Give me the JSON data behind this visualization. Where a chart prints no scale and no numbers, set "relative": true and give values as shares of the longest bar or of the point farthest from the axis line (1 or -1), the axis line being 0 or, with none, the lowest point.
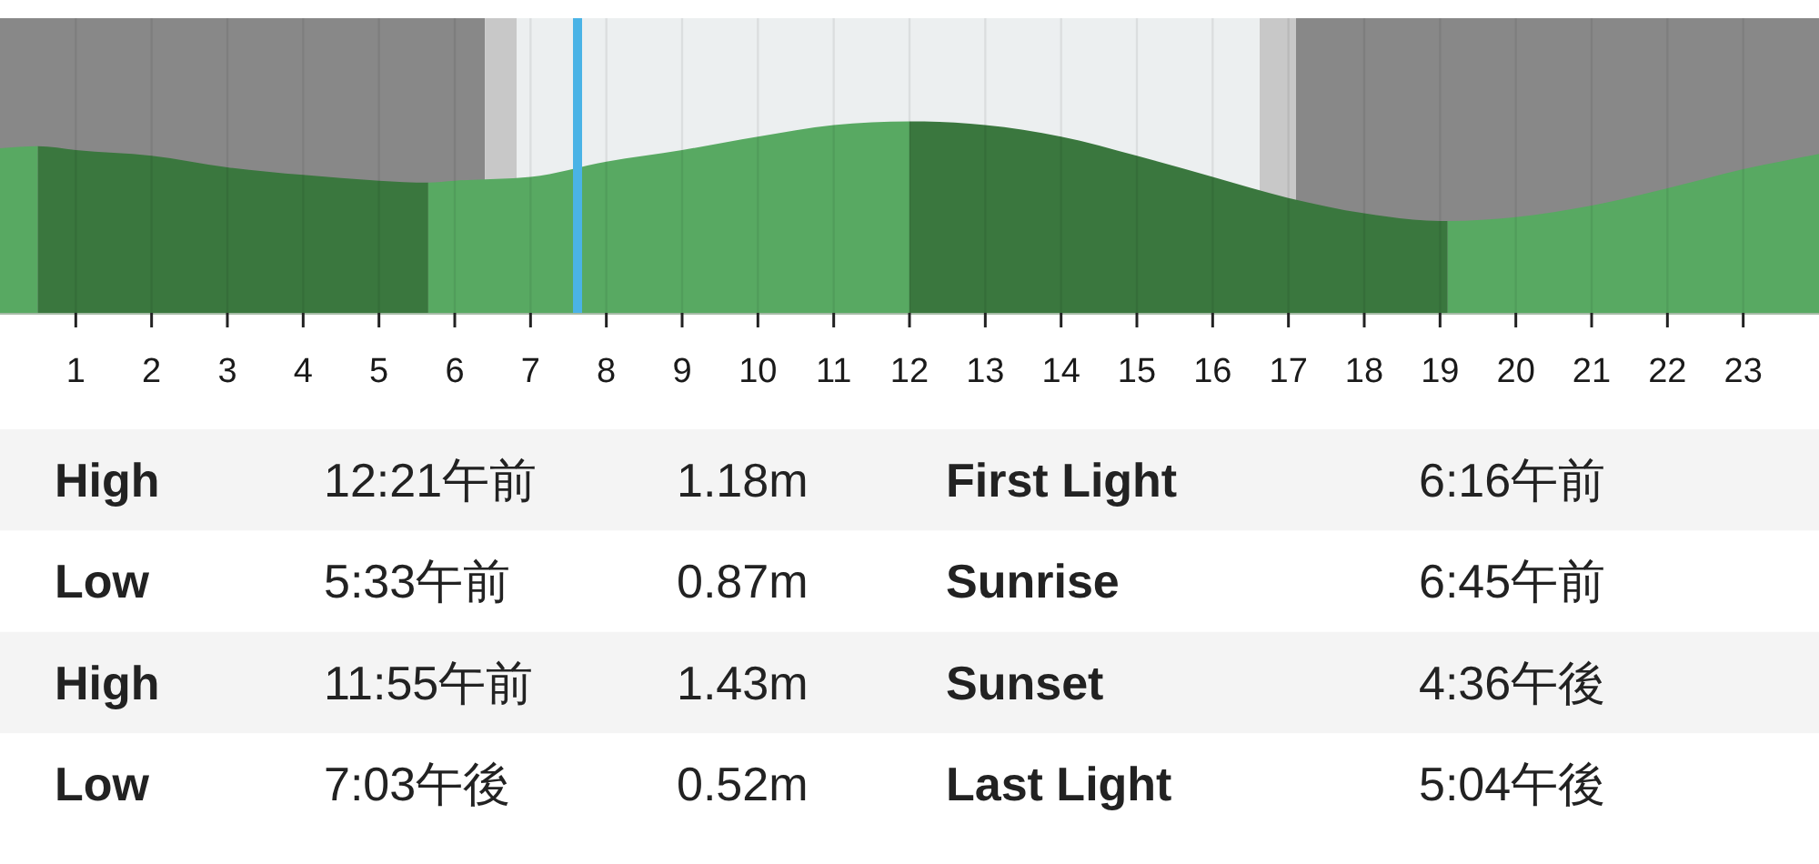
{
  "chart_data": [
    {
      "type": "area",
      "relative": true,
      "xlim": [
        0,
        24
      ],
      "xticks": [
        1,
        2,
        3,
        4,
        5,
        6,
        7,
        8,
        9,
        10,
        11,
        12,
        13,
        14,
        15,
        16,
        17,
        18,
        19,
        20,
        21,
        22,
        23
      ],
      "grid": "x",
      "tick_labels": "x",
      "series": [
        {
          "color": "#58a962",
          "x": [
            0,
            0.5
          ],
          "values": [
            0.86,
            0.87
          ]
        },
        {
          "color": "#3a773e",
          "x": [
            0.5,
            1,
            2,
            3,
            4,
            5,
            5.65
          ],
          "values": [
            0.87,
            0.85,
            0.82,
            0.76,
            0.72,
            0.69,
            0.68
          ]
        },
        {
          "color": "#58a962",
          "x": [
            5.65,
            6,
            7,
            8,
            9,
            10,
            11,
            12
          ],
          "values": [
            0.68,
            0.69,
            0.71,
            0.79,
            0.85,
            0.92,
            0.98,
            1
          ]
        },
        {
          "color": "#3a773e",
          "x": [
            12,
            13,
            14,
            15,
            16,
            17,
            18,
            19,
            19.1
          ],
          "values": [
            1,
            0.98,
            0.92,
            0.82,
            0.71,
            0.6,
            0.52,
            0.48,
            0.48
          ]
        },
        {
          "color": "#58a962",
          "x": [
            19.1,
            20,
            21,
            22,
            23,
            24
          ],
          "values": [
            0.48,
            0.5,
            0.56,
            0.65,
            0.75,
            0.83
          ]
        }
      ],
      "bands": [
        {
          "axis": "x",
          "from": 0,
          "to": 6.4,
          "color": "#888888"
        },
        {
          "axis": "x",
          "from": 6.4,
          "to": 6.82,
          "color": "#c8c8c8"
        },
        {
          "axis": "x",
          "from": 6.82,
          "to": 16.62,
          "color": "#eceff0"
        },
        {
          "axis": "x",
          "from": 16.62,
          "to": 17.1,
          "color": "#c8c8c8"
        },
        {
          "axis": "x",
          "from": 17.1,
          "to": 24,
          "color": "#888888"
        }
      ],
      "ref_lines": [
        {
          "axis": "x",
          "value": 7.62,
          "color": "#4ab3e6"
        }
      ]
    },
    {
      "type": "other",
      "annotations": [
        "High",
        "12:21午前",
        "1.18m",
        "First Light",
        "6:16午前",
        "Low",
        "5:33午前",
        "0.87m",
        "Sunrise",
        "6:45午前",
        "High",
        "11:55午前",
        "1.43m",
        "Sunset",
        "4:36午後",
        "Low",
        "7:03午後",
        "0.52m",
        "Last Light",
        "5:04午後"
      ]
    }
  ]
}
